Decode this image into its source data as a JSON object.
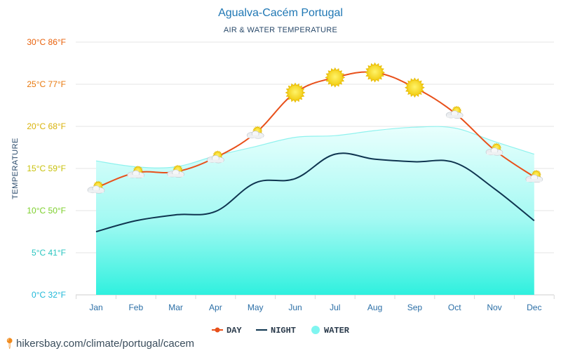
{
  "chart_data": {
    "type": "line",
    "title": "Agualva-Cacém Portugal",
    "subtitle": "AIR & WATER TEMPERATURE",
    "ylabel": "TEMPERATURE",
    "xlabel": "",
    "categories": [
      "Jan",
      "Feb",
      "Mar",
      "Apr",
      "May",
      "Jun",
      "Jul",
      "Aug",
      "Sep",
      "Oct",
      "Nov",
      "Dec"
    ],
    "ylim": [
      0,
      30
    ],
    "yticks": [
      {
        "value": 30,
        "label": "30°C 86°F",
        "color": "#e8600a"
      },
      {
        "value": 25,
        "label": "25°C 77°F",
        "color": "#e8780c"
      },
      {
        "value": 20,
        "label": "20°C 68°F",
        "color": "#d8b20a"
      },
      {
        "value": 15,
        "label": "15°C 59°F",
        "color": "#c8c20c"
      },
      {
        "value": 10,
        "label": "10°C 50°F",
        "color": "#7ccf2a"
      },
      {
        "value": 5,
        "label": "5°C 41°F",
        "color": "#2ac6c0"
      },
      {
        "value": 0,
        "label": "0°C 32°F",
        "color": "#1fb8d8"
      }
    ],
    "series": [
      {
        "name": "DAY",
        "values": [
          12.7,
          14.5,
          14.6,
          16.3,
          19.2,
          24.0,
          25.8,
          26.4,
          24.6,
          21.6,
          17.2,
          14.0
        ],
        "color": "#e8501a"
      },
      {
        "name": "NIGHT",
        "values": [
          7.5,
          8.8,
          9.5,
          9.9,
          13.3,
          13.8,
          16.7,
          16.1,
          15.8,
          15.7,
          12.6,
          8.8
        ],
        "color": "#0f3550"
      },
      {
        "name": "WATER",
        "values": [
          15.9,
          15.2,
          15.2,
          16.5,
          17.6,
          18.7,
          18.9,
          19.5,
          19.9,
          19.8,
          18.2,
          16.7
        ],
        "color": "#7ff5f0"
      }
    ],
    "weather_icons": [
      "partly-cloudy",
      "partly-cloudy",
      "partly-cloudy",
      "partly-cloudy",
      "partly-cloudy",
      "sun",
      "sun",
      "sun",
      "sun",
      "partly-cloudy",
      "partly-cloudy",
      "partly-cloudy"
    ],
    "legend": [
      {
        "label": "DAY",
        "marker": "line-dot",
        "color": "#e8501a"
      },
      {
        "label": "NIGHT",
        "marker": "line",
        "color": "#0f3550"
      },
      {
        "label": "WATER",
        "marker": "circle",
        "color": "#7ff5f0"
      }
    ],
    "legend_position": "bottom-center",
    "grid": true
  },
  "footer": {
    "pin_icon": "location-pin-icon",
    "url": "hikersbay.com/climate/portugal/cacem"
  }
}
